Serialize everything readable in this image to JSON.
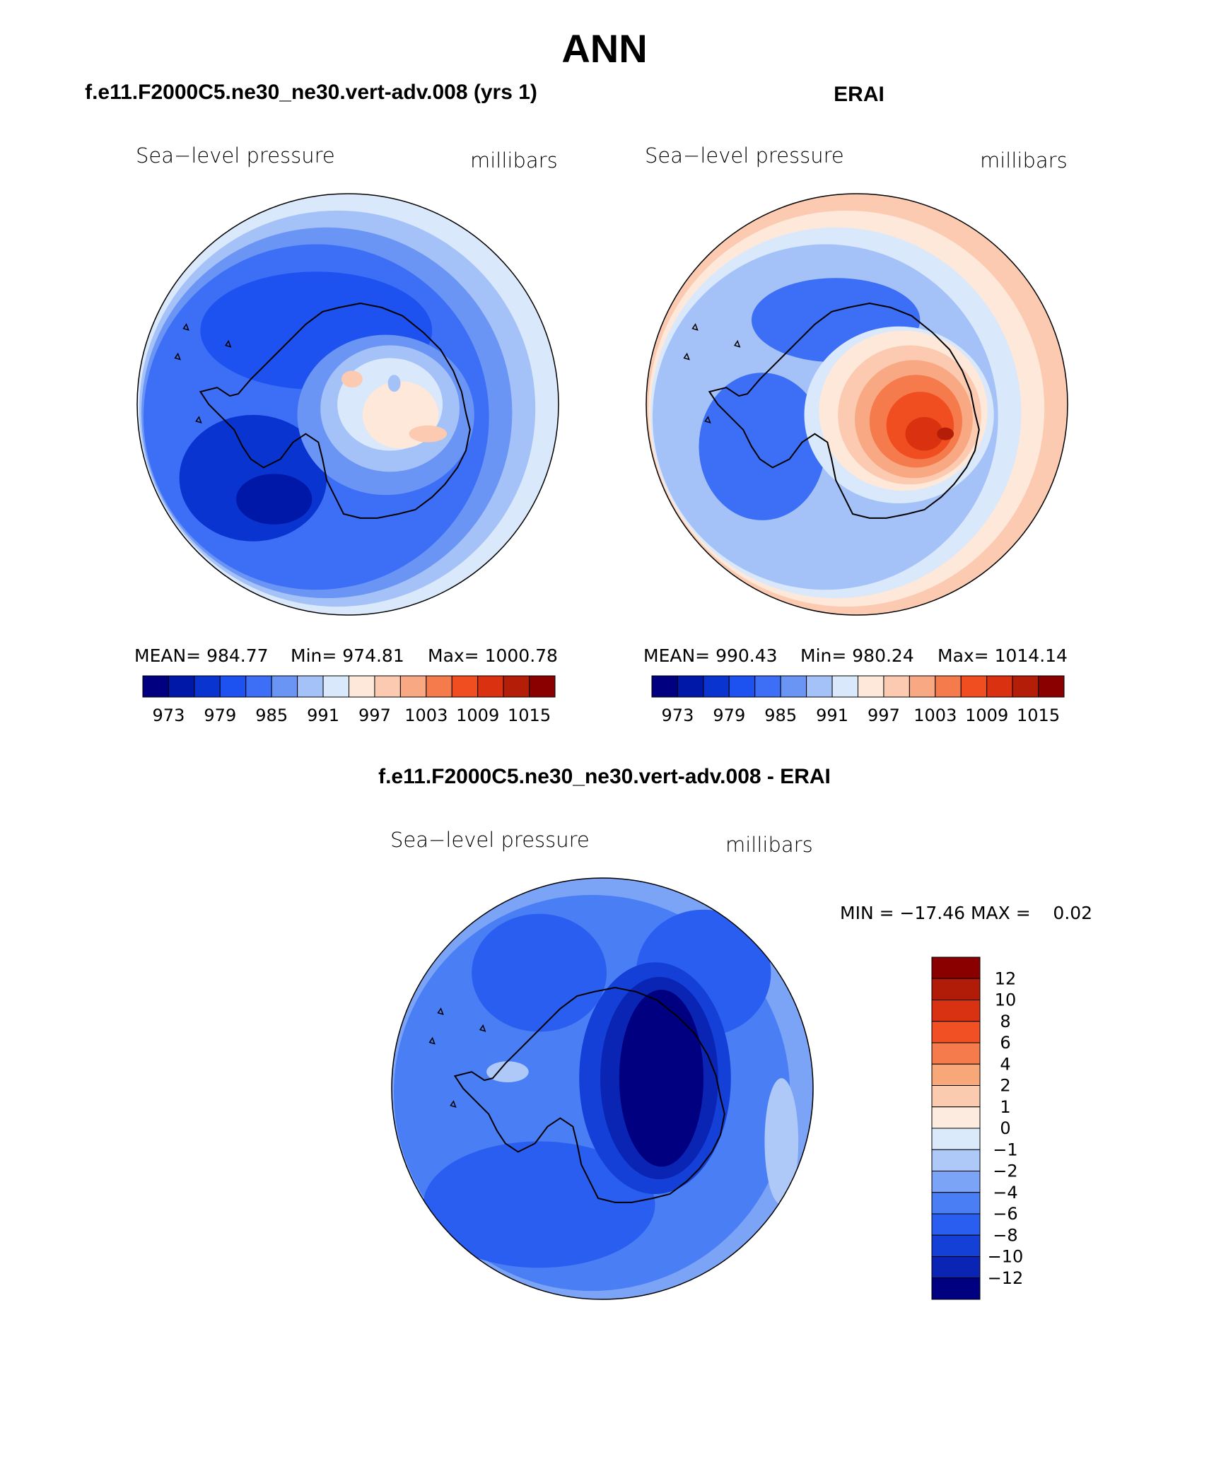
{
  "page": {
    "title": "ANN",
    "diff_title": "f.e11.F2000C5.ne30_ne30.vert-adv.008 - ERAI"
  },
  "palettes": {
    "blue_red": [
      "#000080",
      "#0018a8",
      "#0a34d0",
      "#1e52f0",
      "#3c6ff5",
      "#6a95f5",
      "#a5c2f8",
      "#d9e8fb",
      "#fde8da",
      "#fbcab0",
      "#f8a882",
      "#f57a4c",
      "#f04e20",
      "#da3210",
      "#b41e08",
      "#8a0000"
    ],
    "diff": [
      "#000080",
      "#0a24b4",
      "#1440d8",
      "#2a5ef0",
      "#4a7ef5",
      "#7ba4f7",
      "#aec8f8",
      "#daeafb",
      "#fdebe0",
      "#fbcbb0",
      "#f8a878",
      "#f57a4c",
      "#f05024",
      "#d83212",
      "#b01c08",
      "#8a0000"
    ]
  },
  "chart_data": [
    {
      "type": "heatmap",
      "panel": "model",
      "title": "f.e11.F2000C5.ne30_ne30.vert-adv.008 (yrs 1)",
      "variable": "Sea−level pressure",
      "units": "millibars",
      "stats": {
        "mean": "MEAN= 984.77",
        "min": "Min= 974.81",
        "max": "Max= 1000.78"
      },
      "colorbar": {
        "orientation": "horizontal",
        "ticks": [
          "973",
          "979",
          "985",
          "991",
          "997",
          "1003",
          "1009",
          "1015"
        ]
      },
      "field": {
        "background_level": 4,
        "ring_levels": [
          7,
          6,
          5,
          4
        ],
        "features": [
          {
            "dx": -0.15,
            "dy": -0.35,
            "rx": 0.55,
            "ry": 0.28,
            "level": 3
          },
          {
            "dx": -0.45,
            "dy": 0.35,
            "rx": 0.35,
            "ry": 0.3,
            "level": 2
          },
          {
            "dx": -0.35,
            "dy": 0.45,
            "rx": 0.18,
            "ry": 0.12,
            "level": 1
          },
          {
            "dx": 0.18,
            "dy": 0.05,
            "rx": 0.42,
            "ry": 0.38,
            "level": 5
          },
          {
            "dx": 0.2,
            "dy": 0.02,
            "rx": 0.33,
            "ry": 0.3,
            "level": 6
          },
          {
            "dx": 0.2,
            "dy": 0.0,
            "rx": 0.25,
            "ry": 0.22,
            "level": 7
          },
          {
            "dx": 0.25,
            "dy": 0.05,
            "rx": 0.18,
            "ry": 0.16,
            "level": 8
          },
          {
            "dx": 0.02,
            "dy": -0.12,
            "rx": 0.05,
            "ry": 0.04,
            "level": 9
          },
          {
            "dx": 0.38,
            "dy": 0.14,
            "rx": 0.09,
            "ry": 0.04,
            "level": 9
          },
          {
            "dx": 0.22,
            "dy": -0.1,
            "rx": 0.03,
            "ry": 0.04,
            "level": 6
          }
        ]
      }
    },
    {
      "type": "heatmap",
      "panel": "obs",
      "title": "ERAI",
      "variable": "Sea−level pressure",
      "units": "millibars",
      "stats": {
        "mean": "MEAN= 990.43",
        "min": "Min= 980.24",
        "max": "Max= 1014.14"
      },
      "colorbar": {
        "orientation": "horizontal",
        "ticks": [
          "973",
          "979",
          "985",
          "991",
          "997",
          "1003",
          "1009",
          "1015"
        ]
      },
      "field": {
        "background_level": 5,
        "ring_levels": [
          9,
          8,
          7,
          6
        ],
        "features": [
          {
            "dx": -0.45,
            "dy": 0.2,
            "rx": 0.3,
            "ry": 0.35,
            "level": 4
          },
          {
            "dx": -0.1,
            "dy": -0.4,
            "rx": 0.4,
            "ry": 0.2,
            "level": 4
          },
          {
            "dx": 0.2,
            "dy": 0.05,
            "rx": 0.45,
            "ry": 0.42,
            "level": 7
          },
          {
            "dx": 0.22,
            "dy": 0.03,
            "rx": 0.4,
            "ry": 0.38,
            "level": 8
          },
          {
            "dx": 0.25,
            "dy": 0.05,
            "rx": 0.34,
            "ry": 0.33,
            "level": 9
          },
          {
            "dx": 0.27,
            "dy": 0.07,
            "rx": 0.28,
            "ry": 0.28,
            "level": 10
          },
          {
            "dx": 0.28,
            "dy": 0.08,
            "rx": 0.22,
            "ry": 0.22,
            "level": 11
          },
          {
            "dx": 0.3,
            "dy": 0.1,
            "rx": 0.16,
            "ry": 0.16,
            "level": 12
          },
          {
            "dx": 0.32,
            "dy": 0.14,
            "rx": 0.09,
            "ry": 0.08,
            "level": 13
          },
          {
            "dx": 0.42,
            "dy": 0.14,
            "rx": 0.04,
            "ry": 0.03,
            "level": 14
          }
        ]
      }
    },
    {
      "type": "heatmap",
      "panel": "difference",
      "title": "",
      "variable": "Sea−level pressure",
      "units": "millibars",
      "stats": {
        "minmax": "MIN = −17.46 MAX =    0.02"
      },
      "colorbar": {
        "orientation": "vertical",
        "ticks": [
          "12",
          "10",
          "8",
          "6",
          "4",
          "2",
          "1",
          "0",
          "−1",
          "−2",
          "−4",
          "−6",
          "−8",
          "−10",
          "−12"
        ]
      },
      "field": {
        "background_level": 4,
        "ring_levels": [
          5,
          4
        ],
        "features": [
          {
            "dx": -0.3,
            "dy": 0.55,
            "rx": 0.55,
            "ry": 0.3,
            "level": 3
          },
          {
            "dx": -0.3,
            "dy": -0.55,
            "rx": 0.32,
            "ry": 0.28,
            "level": 3
          },
          {
            "dx": 0.48,
            "dy": -0.55,
            "rx": 0.32,
            "ry": 0.3,
            "level": 3
          },
          {
            "dx": 0.85,
            "dy": 0.25,
            "rx": 0.08,
            "ry": 0.3,
            "level": 6
          },
          {
            "dx": 0.25,
            "dy": -0.05,
            "rx": 0.36,
            "ry": 0.55,
            "level": 2
          },
          {
            "dx": 0.27,
            "dy": -0.05,
            "rx": 0.28,
            "ry": 0.48,
            "level": 1
          },
          {
            "dx": 0.28,
            "dy": -0.05,
            "rx": 0.2,
            "ry": 0.42,
            "level": 0
          },
          {
            "dx": -0.45,
            "dy": -0.08,
            "rx": 0.1,
            "ry": 0.05,
            "level": 6
          }
        ]
      }
    }
  ]
}
